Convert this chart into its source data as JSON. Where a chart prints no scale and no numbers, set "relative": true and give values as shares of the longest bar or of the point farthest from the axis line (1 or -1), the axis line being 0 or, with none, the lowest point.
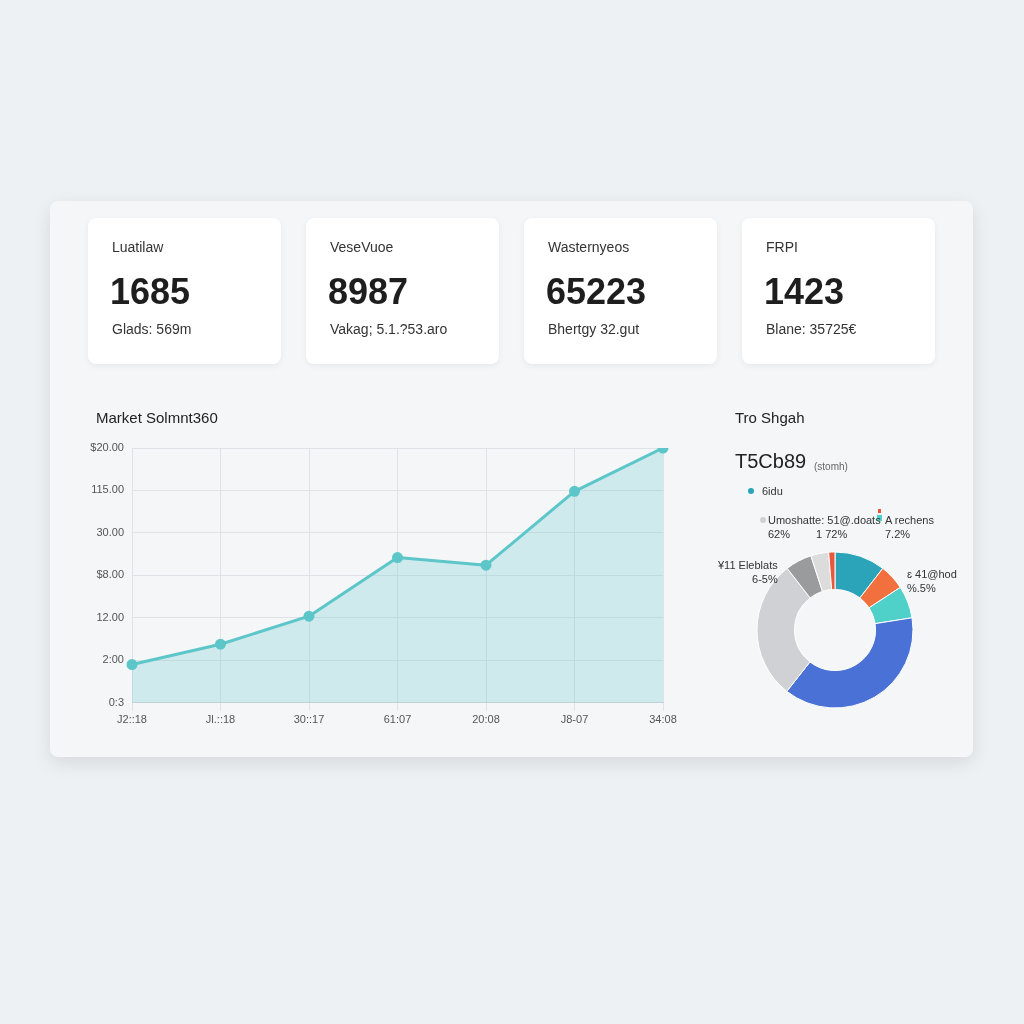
{
  "chart_data": [
    {
      "type": "other",
      "title": "Luatilaw",
      "annotations": [
        "1685",
        "Glads: 569m"
      ]
    },
    {
      "type": "other",
      "title": "VeseVuoe",
      "annotations": [
        "8987",
        "Vakag; 5.1.?53.aro"
      ]
    },
    {
      "type": "other",
      "title": "Wasternyeos",
      "annotations": [
        "65223",
        "Bhertgy 32.gut"
      ]
    },
    {
      "type": "other",
      "title": "FRPI",
      "annotations": [
        "1423",
        "Blane: 35725€"
      ]
    },
    {
      "type": "area",
      "title": "Market Solmnt360",
      "categories": [
        "J2::18",
        "Jl.::18",
        "30::17",
        "61:07",
        "20:08",
        "J8-07",
        "34:08"
      ],
      "values": [
        0.15,
        0.23,
        0.34,
        0.57,
        0.54,
        0.83,
        1.0
      ],
      "color": "#5cc6c9",
      "relative": true,
      "annotations": [
        "0:3",
        "2:00",
        "12.00",
        "$8.00",
        "30.00",
        "115.00",
        "$20.00"
      ],
      "grid": true,
      "marker": "circle"
    },
    {
      "type": "donut",
      "title": "Trо Shgah",
      "subtitle": "T5Cb89",
      "categories": [
        "6idu",
        null,
        null,
        null,
        null,
        null,
        null,
        null
      ],
      "values": [
        10.5,
        5.3,
        6.7,
        38.1,
        28.9,
        5.5,
        3.7,
        1.3
      ],
      "colors": [
        "#2ba3b8",
        "#f2703d",
        "#4fd0c8",
        "#4a72d6",
        "#cfd1d4",
        "#9a9b9d",
        "#dcdcdc",
        "#e8583a"
      ],
      "legend": "top left",
      "annotations": [
        "(stomh)",
        "Umoshatte: 51@.doats\n62%",
        "1 72%",
        "A rechens\n7.2%",
        "¥11 Eleblats\n6-5%",
        "ɛ 41@hod\n%.5%"
      ]
    }
  ]
}
